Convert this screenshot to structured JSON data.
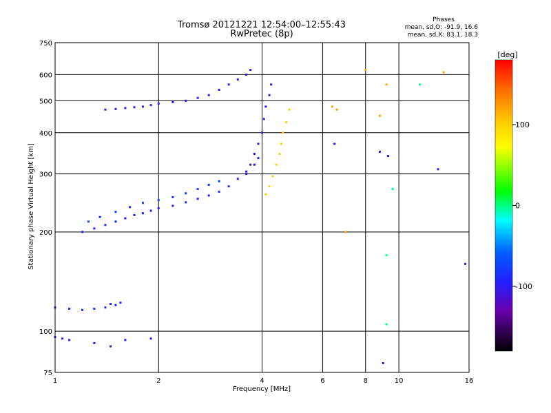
{
  "header": {
    "title": "Tromsø 20121221 12:54:00–12:55:43",
    "subtitle": "RwPretec (8p)",
    "stats_title": "Phases",
    "stats_o": "mean, sd,O: -91.9, 16.6",
    "stats_x": "mean, sd,X:  83.1, 18.3"
  },
  "chart_data": {
    "type": "scatter",
    "xlabel": "Frequency [MHz]",
    "ylabel": "Stationary phase Virtual Height [km]",
    "x_scale": "log",
    "y_scale": "log",
    "xlim": [
      1,
      16
    ],
    "ylim": [
      75,
      750
    ],
    "x_ticks": [
      1,
      2,
      4,
      6,
      8,
      10,
      16
    ],
    "y_ticks": [
      75,
      100,
      200,
      300,
      400,
      500,
      600,
      750
    ],
    "grid": true,
    "colorbar": {
      "label": "[deg]",
      "range": [
        -180,
        180
      ],
      "ticks": [
        100,
        0,
        -100
      ]
    },
    "series": [
      {
        "phase": -90,
        "points": [
          [
            1.0,
            118
          ],
          [
            1.1,
            117
          ],
          [
            1.2,
            116
          ],
          [
            1.3,
            117
          ],
          [
            1.4,
            118
          ],
          [
            1.45,
            121
          ],
          [
            1.5,
            120
          ],
          [
            1.55,
            122
          ]
        ]
      },
      {
        "phase": -95,
        "points": [
          [
            1.0,
            96
          ],
          [
            1.05,
            95
          ],
          [
            1.1,
            94
          ],
          [
            1.3,
            92
          ],
          [
            1.45,
            90
          ],
          [
            1.6,
            94
          ],
          [
            1.9,
            95
          ]
        ]
      },
      {
        "phase": -95,
        "points": [
          [
            1.2,
            200
          ],
          [
            1.3,
            205
          ],
          [
            1.4,
            210
          ],
          [
            1.5,
            215
          ],
          [
            1.6,
            220
          ],
          [
            1.7,
            225
          ],
          [
            1.8,
            228
          ],
          [
            1.9,
            232
          ],
          [
            2.0,
            236
          ],
          [
            2.2,
            240
          ],
          [
            2.4,
            246
          ],
          [
            2.6,
            252
          ],
          [
            2.8,
            258
          ],
          [
            3.0,
            265
          ],
          [
            3.2,
            275
          ],
          [
            3.4,
            290
          ],
          [
            3.6,
            305
          ],
          [
            3.8,
            320
          ],
          [
            3.9,
            335
          ]
        ]
      },
      {
        "phase": -80,
        "points": [
          [
            1.25,
            215
          ],
          [
            1.35,
            222
          ],
          [
            1.5,
            230
          ],
          [
            1.65,
            238
          ],
          [
            1.8,
            245
          ],
          [
            2.0,
            250
          ],
          [
            2.2,
            255
          ],
          [
            2.4,
            262
          ],
          [
            2.6,
            270
          ],
          [
            2.8,
            278
          ],
          [
            3.0,
            285
          ]
        ]
      },
      {
        "phase": -100,
        "points": [
          [
            1.4,
            470
          ],
          [
            1.5,
            472
          ],
          [
            1.6,
            475
          ],
          [
            1.7,
            478
          ],
          [
            1.8,
            480
          ],
          [
            1.9,
            485
          ],
          [
            2.0,
            490
          ],
          [
            2.2,
            495
          ],
          [
            2.4,
            500
          ],
          [
            2.6,
            510
          ],
          [
            2.8,
            520
          ],
          [
            3.0,
            540
          ],
          [
            3.2,
            560
          ],
          [
            3.4,
            580
          ],
          [
            3.6,
            600
          ],
          [
            3.7,
            620
          ]
        ]
      },
      {
        "phase": -110,
        "points": [
          [
            3.6,
            300
          ],
          [
            3.7,
            320
          ],
          [
            3.8,
            345
          ],
          [
            3.9,
            370
          ],
          [
            4.0,
            400
          ],
          [
            4.05,
            440
          ],
          [
            4.1,
            480
          ],
          [
            4.2,
            520
          ],
          [
            4.25,
            560
          ]
        ]
      },
      {
        "phase": 100,
        "points": [
          [
            4.1,
            260
          ],
          [
            4.2,
            275
          ],
          [
            4.3,
            295
          ],
          [
            4.4,
            320
          ],
          [
            4.5,
            345
          ],
          [
            4.55,
            370
          ],
          [
            4.6,
            400
          ],
          [
            4.7,
            430
          ],
          [
            4.8,
            470
          ]
        ]
      },
      {
        "phase": 120,
        "points": [
          [
            6.4,
            480
          ],
          [
            6.6,
            470
          ],
          [
            7.0,
            200
          ],
          [
            8.0,
            620
          ],
          [
            8.8,
            450
          ],
          [
            9.2,
            560
          ],
          [
            13.5,
            610
          ]
        ]
      },
      {
        "phase": 0,
        "points": [
          [
            9.2,
            170
          ],
          [
            9.2,
            105
          ],
          [
            9.6,
            270
          ],
          [
            11.5,
            560
          ]
        ]
      },
      {
        "phase": -100,
        "points": [
          [
            6.5,
            370
          ],
          [
            8.8,
            350
          ],
          [
            9.3,
            340
          ],
          [
            9.0,
            80
          ],
          [
            13.0,
            310
          ],
          [
            15.6,
            160
          ]
        ]
      }
    ]
  }
}
